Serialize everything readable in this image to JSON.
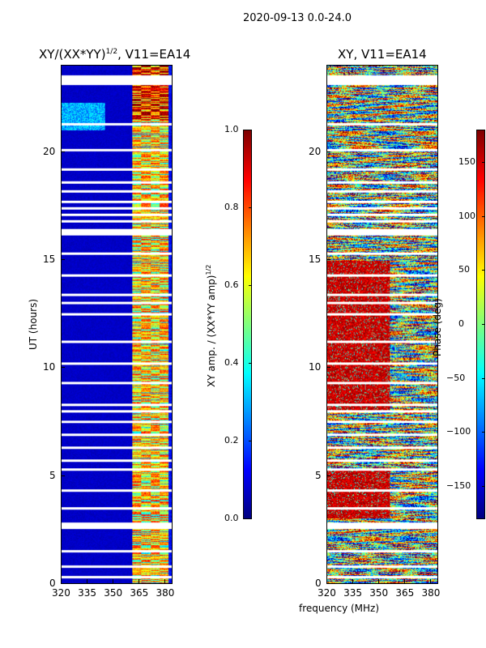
{
  "suptitle": "2020-09-13 0.0-24.0",
  "xlabel": "frequency (MHz)",
  "chart_data": [
    {
      "type": "heatmap",
      "title": "XY/(XX*YY)",
      "title_sup": "1/2",
      "title_suffix": ", V11=EA14",
      "ylabel": "UT (hours)",
      "xlabel": "frequency (MHz)",
      "xlim": [
        320,
        384
      ],
      "ylim": [
        0,
        24
      ],
      "xticks": [
        320,
        335,
        350,
        365,
        380
      ],
      "yticks": [
        0,
        5,
        10,
        15,
        20
      ],
      "colormap": "jet",
      "colorbar": {
        "label": "XY amp. / (XX*YY amp)",
        "label_sup": "1/2",
        "range": [
          0.0,
          1.0
        ],
        "ticks": [
          "0.0",
          "0.2",
          "0.4",
          "0.6",
          "0.8",
          "1.0"
        ]
      },
      "notes": "low values (~0.05) below ~360 MHz; striped high values (0.3-0.9) between ~362 and ~382 MHz"
    },
    {
      "type": "heatmap",
      "title": "XY, V11=EA14",
      "xlim": [
        320,
        384
      ],
      "ylim": [
        0,
        24
      ],
      "xticks": [
        320,
        335,
        350,
        365,
        380
      ],
      "yticks": [
        0,
        5,
        10,
        15,
        20
      ],
      "colormap": "jet",
      "colorbar": {
        "label": "Phase (deg)",
        "range": [
          -180,
          180
        ],
        "ticks": [
          "150",
          "100",
          "50",
          "0",
          "−50",
          "−100",
          "−150"
        ]
      },
      "notes": "phase near +150 to 180 deg for ~3-5 h and ~8-15 h at 320-355 MHz; mixed elsewhere"
    }
  ],
  "missing_ut_hours": [
    0.3,
    0.8,
    1.5,
    2.6,
    2.75,
    3.5,
    4.3,
    5.3,
    5.7,
    6.3,
    6.9,
    7.5,
    8.0,
    8.3,
    9.3,
    10.2,
    11.2,
    12.5,
    13.0,
    13.4,
    14.3,
    15.3,
    16.2,
    16.4,
    16.8,
    17.1,
    17.4,
    17.7,
    18.2,
    18.6,
    19.2,
    20.1,
    21.3,
    23.2,
    23.5
  ]
}
